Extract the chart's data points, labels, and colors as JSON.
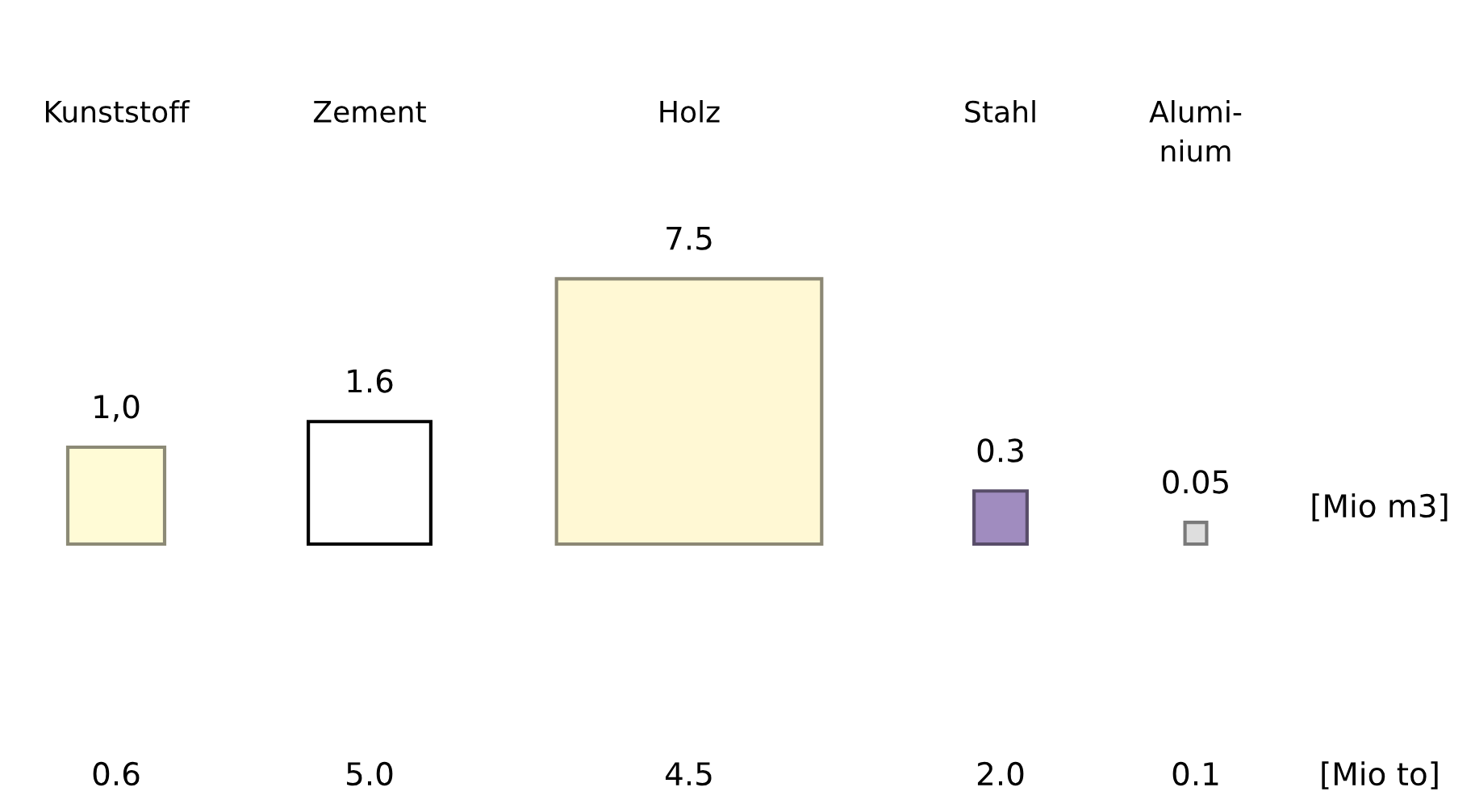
{
  "chart_data": {
    "type": "other",
    "categories": [
      "Kunststoff",
      "Zement",
      "Holz",
      "Stahl",
      "Alumi-\nnium"
    ],
    "colors": [
      "#fffbd6",
      "#ffffff",
      "#fff8d4",
      "#a08cbf",
      "#dedede"
    ],
    "series": [
      {
        "name": "[Mio m3]",
        "values": [
          1.0,
          1.6,
          7.5,
          0.3,
          0.05
        ],
        "value_labels": [
          "1,0",
          "1.6",
          "7.5",
          "0.3",
          "0.05"
        ]
      },
      {
        "name": "[Mio to]",
        "values": [
          0.6,
          5.0,
          4.5,
          2.0,
          0.1
        ],
        "value_labels": [
          "0.6",
          "5.0",
          "4.5",
          "2.0",
          "0.1"
        ]
      }
    ]
  }
}
